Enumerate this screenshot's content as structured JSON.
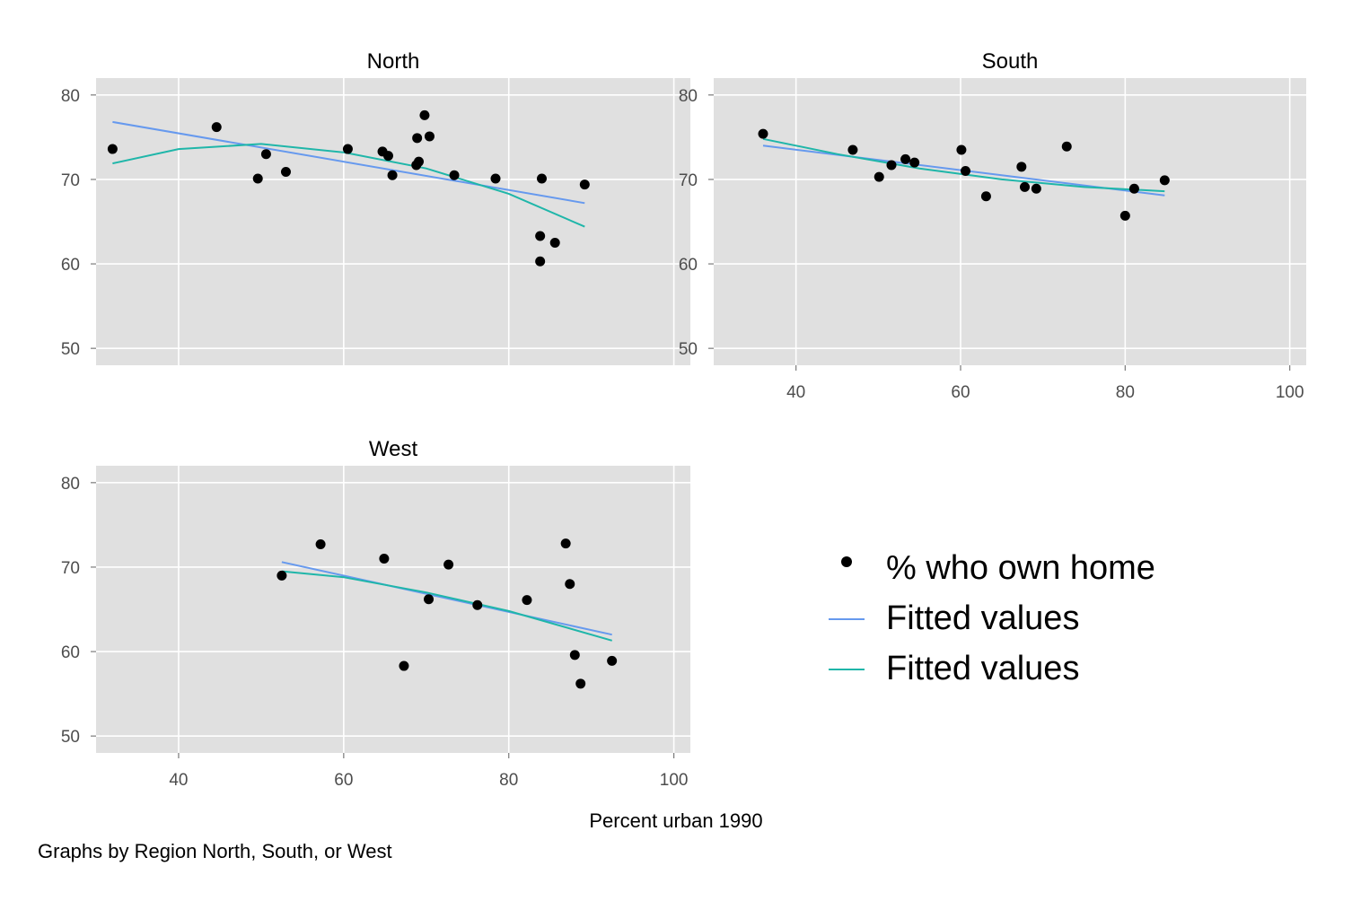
{
  "chart_data": {
    "type": "scatter",
    "layout": "faceted",
    "xlabel": "Percent urban 1990",
    "note": "Graphs by Region North, South, or West",
    "xlim": [
      30,
      102
    ],
    "ylim": [
      48,
      82
    ],
    "xticks": [
      40,
      60,
      80,
      100
    ],
    "yticks": [
      50,
      60,
      70,
      80
    ],
    "grid": true,
    "legend": {
      "placement": "bottom-right",
      "entries": [
        {
          "label": "% who own home",
          "kind": "marker",
          "color": "#000000"
        },
        {
          "label": "Fitted values",
          "kind": "line",
          "color": "#6699ee"
        },
        {
          "label": "Fitted values",
          "kind": "line",
          "color": "#1fb6a9"
        }
      ]
    },
    "colors": {
      "panel_bg": "#e0e0e0",
      "grid": "#ffffff",
      "points": "#000000",
      "linear_fit": "#6699ee",
      "quadratic_fit": "#1fb6a9"
    },
    "panels": [
      {
        "title": "North",
        "points": [
          [
            32.0,
            73.6
          ],
          [
            44.6,
            76.2
          ],
          [
            50.6,
            73.0
          ],
          [
            49.6,
            70.1
          ],
          [
            53.0,
            70.9
          ],
          [
            60.5,
            73.6
          ],
          [
            64.7,
            73.3
          ],
          [
            65.4,
            72.8
          ],
          [
            65.9,
            70.5
          ],
          [
            68.9,
            74.9
          ],
          [
            69.1,
            72.1
          ],
          [
            68.8,
            71.7
          ],
          [
            69.8,
            77.6
          ],
          [
            70.4,
            75.1
          ],
          [
            73.4,
            70.5
          ],
          [
            78.4,
            70.1
          ],
          [
            84.0,
            70.1
          ],
          [
            83.8,
            63.3
          ],
          [
            85.6,
            62.5
          ],
          [
            83.8,
            60.3
          ],
          [
            89.2,
            69.4
          ]
        ],
        "linear_fit": {
          "x": [
            32.0,
            89.2
          ],
          "y": [
            76.8,
            67.2
          ]
        },
        "quadratic_fit": {
          "x": [
            32.0,
            40.0,
            50.0,
            60.0,
            70.0,
            80.0,
            89.2
          ],
          "y": [
            71.9,
            73.6,
            74.2,
            73.2,
            71.3,
            68.3,
            64.4
          ]
        }
      },
      {
        "title": "South",
        "points": [
          [
            36.0,
            75.4
          ],
          [
            46.9,
            73.5
          ],
          [
            50.1,
            70.3
          ],
          [
            51.6,
            71.7
          ],
          [
            53.3,
            72.4
          ],
          [
            54.4,
            72.0
          ],
          [
            60.1,
            73.5
          ],
          [
            60.6,
            71.0
          ],
          [
            63.1,
            68.0
          ],
          [
            67.4,
            71.5
          ],
          [
            67.8,
            69.1
          ],
          [
            69.2,
            68.9
          ],
          [
            72.9,
            73.9
          ],
          [
            80.0,
            65.7
          ],
          [
            81.1,
            68.9
          ],
          [
            84.8,
            69.9
          ]
        ],
        "linear_fit": {
          "x": [
            36.0,
            84.8
          ],
          "y": [
            74.0,
            68.1
          ]
        },
        "quadratic_fit": {
          "x": [
            36.0,
            45.0,
            55.0,
            65.0,
            75.0,
            84.8
          ],
          "y": [
            74.8,
            73.0,
            71.3,
            70.0,
            69.1,
            68.6
          ]
        }
      },
      {
        "title": "West",
        "points": [
          [
            52.5,
            69.0
          ],
          [
            57.2,
            72.7
          ],
          [
            64.9,
            71.0
          ],
          [
            67.3,
            58.3
          ],
          [
            70.3,
            66.2
          ],
          [
            72.7,
            70.3
          ],
          [
            76.2,
            65.5
          ],
          [
            82.2,
            66.1
          ],
          [
            86.9,
            72.8
          ],
          [
            87.4,
            68.0
          ],
          [
            88.0,
            59.6
          ],
          [
            88.7,
            56.2
          ],
          [
            92.5,
            58.9
          ]
        ],
        "linear_fit": {
          "x": [
            52.5,
            92.5
          ],
          "y": [
            70.6,
            62.0
          ]
        },
        "quadratic_fit": {
          "x": [
            52.5,
            60.0,
            70.0,
            80.0,
            92.5
          ],
          "y": [
            69.5,
            68.8,
            67.0,
            64.8,
            61.3
          ]
        }
      }
    ]
  }
}
